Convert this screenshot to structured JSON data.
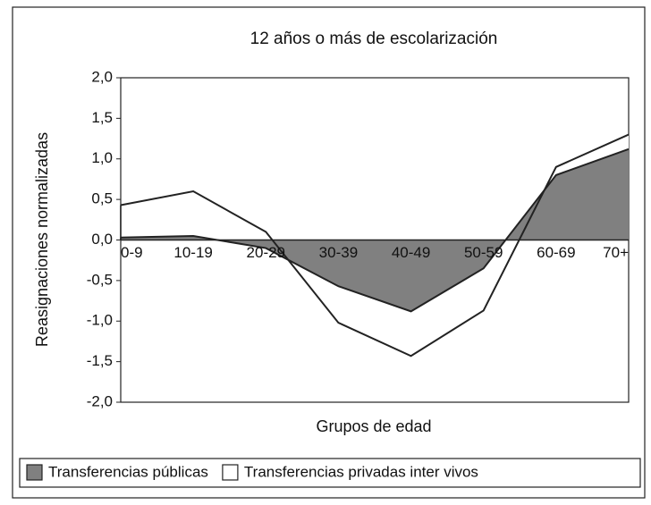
{
  "chart_data": {
    "type": "area",
    "title": "12 años o más de escolarización",
    "xlabel": "Grupos de edad",
    "ylabel": "Reasignaciones normalizadas",
    "categories": [
      "0-9",
      "10-19",
      "20-29",
      "30-39",
      "40-49",
      "50-59",
      "60-69",
      "70+"
    ],
    "series": [
      {
        "name": "Transferencias públicas",
        "color": "#808080",
        "values": [
          0.03,
          0.05,
          -0.1,
          -0.57,
          -0.88,
          -0.35,
          0.8,
          1.12
        ]
      },
      {
        "name": "Transferencias privadas inter vivos",
        "color": "#ffffff",
        "values": [
          0.43,
          0.6,
          0.1,
          -1.02,
          -1.43,
          -0.87,
          0.9,
          1.3
        ]
      }
    ],
    "ylim": [
      -2,
      2
    ],
    "yticks": [
      {
        "value": 2,
        "label": "2,0"
      },
      {
        "value": 1.5,
        "label": "1,5"
      },
      {
        "value": 1,
        "label": "1,0"
      },
      {
        "value": 0.5,
        "label": "0,5"
      },
      {
        "value": 0,
        "label": "0,0"
      },
      {
        "value": -0.5,
        "label": "-0,5"
      },
      {
        "value": -1,
        "label": "-1,0"
      },
      {
        "value": -1.5,
        "label": "-1,5"
      },
      {
        "value": -2,
        "label": "-2,0"
      }
    ],
    "legend": "bottom"
  }
}
